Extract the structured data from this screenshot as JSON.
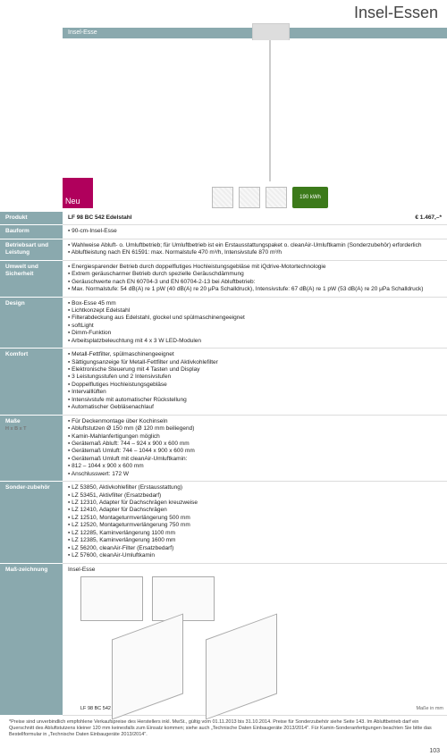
{
  "title": "Insel-Essen",
  "header_bar": "Insel-Esse",
  "neu_label": "Neu",
  "energy_label": "190 kWh",
  "rows": [
    {
      "label": "Produkt",
      "name": "LF 98 BC 542 Edelstahl",
      "price": "€ 1.467,–*"
    },
    {
      "label": "Bauform",
      "items": [
        "90-cm-Insel-Esse"
      ]
    },
    {
      "label": "Betriebsart und Leistung",
      "items": [
        "Wahlweise Abluft- o. Umluftbetrieb; für Umluftbetrieb ist ein Erstausstattungspaket o. cleanAir-Umluftkamin (Sonderzubehör) erforderlich",
        "Abluftleistung nach EN 61591: max. Normalstufe 470 m³/h, Intensivstufe 870 m³/h"
      ]
    },
    {
      "label": "Umwelt und Sicherheit",
      "items": [
        "Energiesparender Betrieb durch doppelflutiges Hochleistungsgebläse mit iQdrive-Motortechnologie",
        "Extrem geräuscharmer Betrieb durch spezielle Geräuschdämmung",
        "Geräuschwerte nach EN 60704-3 und EN 60704-2-13 bei Abluftbetrieb:",
        "Max. Normalstufe: 54 dB(A) re 1 pW (40 dB(A) re 20 μPa Schalldruck), Intensivstufe: 67 dB(A) re 1 pW (53 dB(A) re 20 μPa Schalldruck)"
      ]
    },
    {
      "label": "Design",
      "items": [
        "Box-Esse 45 mm",
        "Lichtkonzept Edelstahl",
        "Filterabdeckung aus Edelstahl, glockel und spülmaschinengeeignet",
        "softLight",
        "Dimm-Funktion",
        "Arbeitsplatzbeleuchtung mit 4 x 3 W LED-Modulen"
      ]
    },
    {
      "label": "Komfort",
      "items": [
        "Metall-Fettfilter, spülmaschinengeeignet",
        "Sättigungsanzeige für Metall-Fettfilter und Aktivkohlefilter",
        "Elektronische Steuerung mit 4 Tasten und Display",
        "3 Leistungsstufen und 2 Intensivstufen",
        "Doppelflutiges Hochleistungsgebläse",
        "Intervalllüften",
        "Intensivstufe mit automatischer Rückstellung",
        "Automatischer Gebläsenachlauf"
      ]
    },
    {
      "label": "Maße",
      "sublabel": "H x B x T",
      "items": [
        "Für Deckenmontage über Kochinseln",
        "Abluftstutzen Ø 150 mm (Ø 120 mm beiliegend)",
        "Kamin-Mahlanfertigungen möglich",
        "Gerätemaß Abluft:   744 – 924 x 900 x 600 mm",
        "Gerätemaß Umluft:   744 – 1044 x 900 x 600 mm",
        "Gerätemaß Umluft mit cleanAir-Umluftkamin:",
        "812 – 1044 x 900 x 600 mm",
        "Anschlusswert: 172 W"
      ]
    },
    {
      "label": "Sonder-zubehör",
      "items": [
        "LZ 53850, Aktivkohlefilter (Erstausstattung)",
        "LZ 53451, Aktivfilter (Ersatzbedarf)",
        "LZ 12310, Adapter für Dachschrägen kreuzweise",
        "LZ 12410, Adapter für Dachschrägen",
        "LZ 12510, Montageturmverlängerung 500 mm",
        "LZ 12520, Montageturmverlängerung 750 mm",
        "LZ 12285, Kaminverlängerung 1100 mm",
        "LZ 12385, Kaminverlängerung 1600 mm",
        "LZ 56200, cleanAir-Filter (Ersatzbedarf)",
        "LZ 57600, cleanAir-Umluftkamin"
      ]
    }
  ],
  "diagram": {
    "label_row": "Maß-zeichnung",
    "caption_small": "Insel-Esse",
    "caption_model": "LF 98 BC 542",
    "caption_right": "Maße in mm"
  },
  "footnote": "*Preise sind unverbindlich empfohlene Verkaufspreise des Herstellers inkl. MwSt., gültig vom 01.11.2013 bis 31.10.2014. Preise für Sonderzubehör siehe Seite 143.\nIm Abluftbetrieb darf ein Querschnitt des Abluftstutzens kleiner 120 mm keinesfalls zum Einsatz kommen; siehe auch „Technische Daten Einbaugeräte 2013/2014\".\nFür Kamin-Sonderanfertigungen beachten Sie bitte das Bestellformular in „Technische Daten Einbaugeräte 2013/2014\".",
  "page_number": "103",
  "colors": {
    "teal": "#8aa9ae",
    "magenta": "#b0005c",
    "green": "#3c7a1a"
  }
}
